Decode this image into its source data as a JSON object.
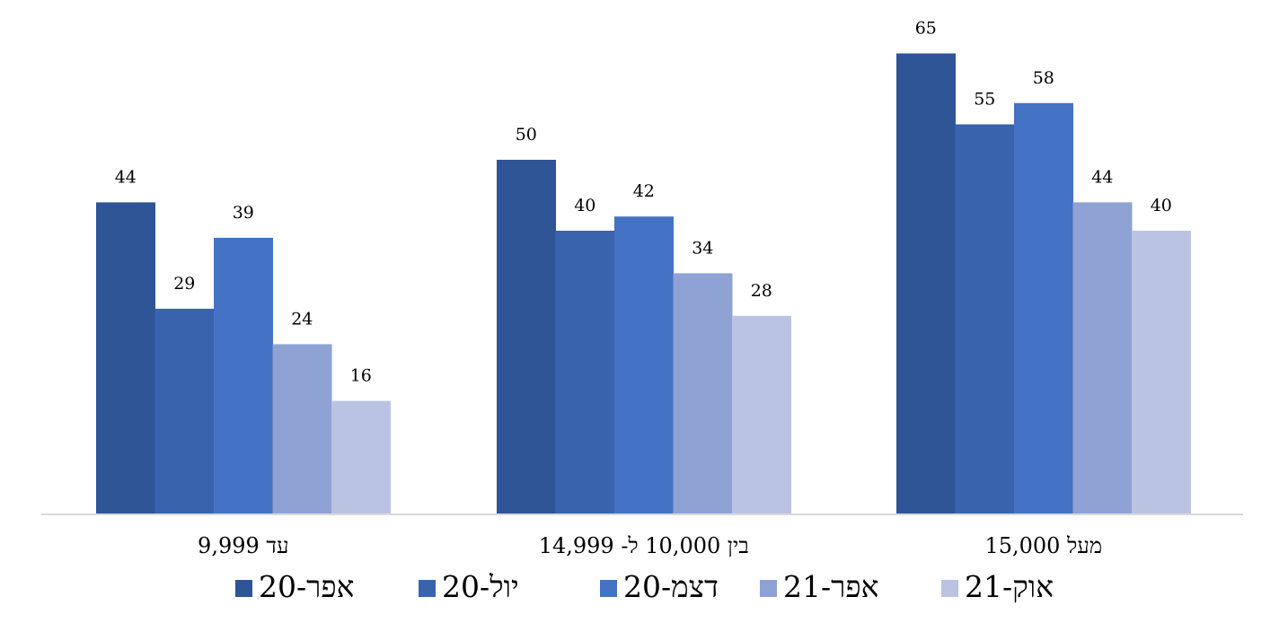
{
  "chart_data": {
    "type": "bar",
    "categories": [
      "עד 9,999",
      "בין 10,000 ל- 14,999",
      "מעל 15,000"
    ],
    "series": [
      {
        "name": "אפר-20",
        "values": [
          44,
          50,
          65
        ],
        "color": "#2F5597"
      },
      {
        "name": "יול-20",
        "values": [
          29,
          40,
          55
        ],
        "color": "#3A63AE"
      },
      {
        "name": "דצמ-20",
        "values": [
          39,
          42,
          58
        ],
        "color": "#4472C4"
      },
      {
        "name": "אפר-21",
        "values": [
          24,
          34,
          44
        ],
        "color": "#8FA2D4"
      },
      {
        "name": "אוק-21",
        "values": [
          16,
          28,
          40
        ],
        "color": "#BAC4E2"
      }
    ],
    "ylim": [
      0,
      70
    ],
    "grid": false,
    "data_labels": true,
    "legend_position": "bottom",
    "axis_color": "#D9D9D9"
  }
}
